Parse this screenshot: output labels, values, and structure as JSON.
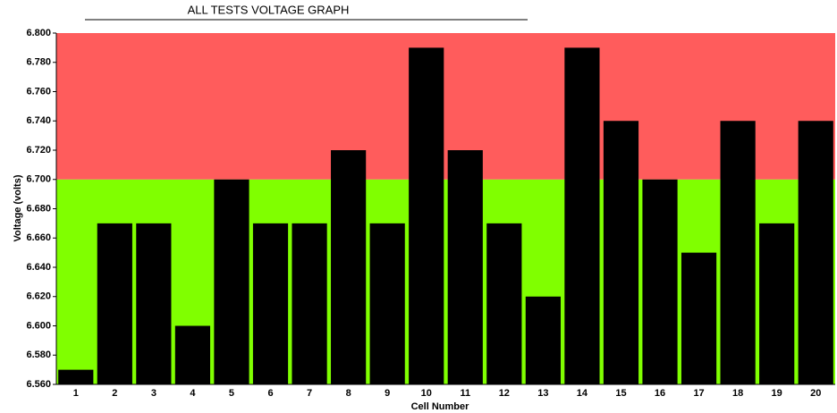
{
  "chart_data": {
    "type": "bar",
    "title": "ALL TESTS VOLTAGE GRAPH",
    "x_label": "Cell Number",
    "y_label": "Voltage (volts)",
    "categories": [
      "1",
      "2",
      "3",
      "4",
      "5",
      "6",
      "7",
      "8",
      "9",
      "10",
      "11",
      "12",
      "13",
      "14",
      "15",
      "16",
      "17",
      "18",
      "19",
      "20"
    ],
    "values": [
      6.57,
      6.67,
      6.67,
      6.6,
      6.7,
      6.67,
      6.67,
      6.72,
      6.67,
      6.79,
      6.72,
      6.67,
      6.62,
      6.79,
      6.74,
      6.7,
      6.65,
      6.74,
      6.67,
      6.74
    ],
    "color": "#000000",
    "ylim": [
      6.56,
      6.8
    ],
    "yticks": [
      {
        "value": 6.56,
        "label": "6.560"
      },
      {
        "value": 6.58,
        "label": "6.580"
      },
      {
        "value": 6.6,
        "label": "6.600"
      },
      {
        "value": 6.62,
        "label": "6.620"
      },
      {
        "value": 6.64,
        "label": "6.640"
      },
      {
        "value": 6.66,
        "label": "6.660"
      },
      {
        "value": 6.68,
        "label": "6.680"
      },
      {
        "value": 6.7,
        "label": "6.700"
      },
      {
        "value": 6.72,
        "label": "6.720"
      },
      {
        "value": 6.74,
        "label": "6.740"
      },
      {
        "value": 6.76,
        "label": "6.760"
      },
      {
        "value": 6.78,
        "label": "6.780"
      },
      {
        "value": 6.8,
        "label": "6.800"
      }
    ],
    "bands": [
      {
        "from": 6.56,
        "to": 6.7,
        "color": "#80ff00"
      },
      {
        "from": 6.7,
        "to": 6.8,
        "color": "#ff5c5c"
      }
    ],
    "grid": false
  }
}
